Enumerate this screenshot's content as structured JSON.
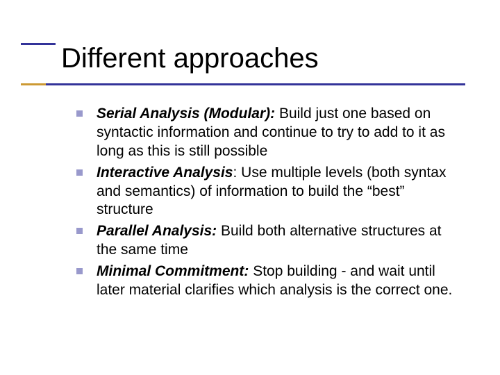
{
  "colors": {
    "rule": "#333399",
    "accent": "#cc9933",
    "bullet": "#9999cc",
    "text": "#000000",
    "background": "#ffffff"
  },
  "typography": {
    "title_fontsize": 40,
    "body_fontsize": 21,
    "font_family": "Arial"
  },
  "title": "Different approaches",
  "items": [
    {
      "label": "Serial Analysis (Modular):  ",
      "body": "Build just one based on syntactic information and continue to try to add to it as long as this is still possible"
    },
    {
      "label": "Interactive Analysis",
      "body": ": Use multiple levels (both syntax and semantics) of information to build the “best” structure"
    },
    {
      "label": "Parallel Analysis:  ",
      "body": "Build both alternative structures at the same time"
    },
    {
      "label": "Minimal Commitment: ",
      "body": "Stop building - and wait until later material clarifies which analysis is the correct one."
    }
  ]
}
